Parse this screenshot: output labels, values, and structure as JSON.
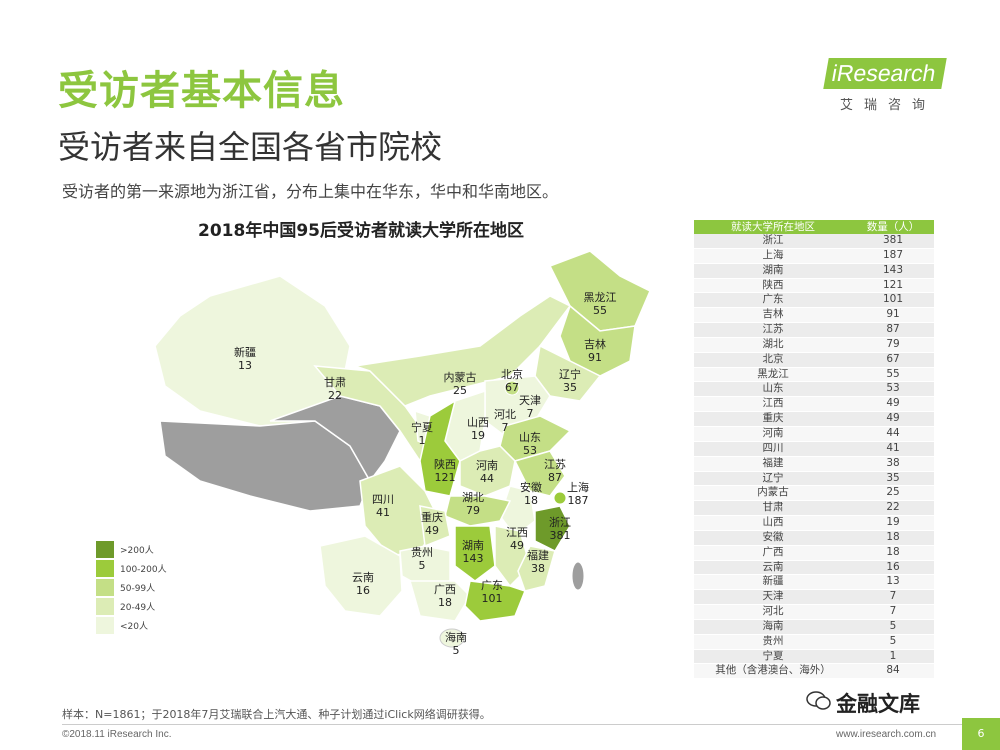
{
  "header": {
    "title": "受访者基本信息",
    "subtitle": "受访者来自全国各省市院校",
    "description": "受访者的第一来源地为浙江省，分布上集中在华东，华中和华南地区。"
  },
  "logo": {
    "brand": "iResearch",
    "cn": "艾瑞咨询"
  },
  "chart_data": {
    "type": "table",
    "title": "2018年中国95后受访者就读大学所在地区",
    "columns": [
      "就读大学所在地区",
      "数量（人）"
    ],
    "rows": [
      [
        "浙江",
        "381"
      ],
      [
        "上海",
        "187"
      ],
      [
        "湖南",
        "143"
      ],
      [
        "陕西",
        "121"
      ],
      [
        "广东",
        "101"
      ],
      [
        "吉林",
        "91"
      ],
      [
        "江苏",
        "87"
      ],
      [
        "湖北",
        "79"
      ],
      [
        "北京",
        "67"
      ],
      [
        "黑龙江",
        "55"
      ],
      [
        "山东",
        "53"
      ],
      [
        "江西",
        "49"
      ],
      [
        "重庆",
        "49"
      ],
      [
        "河南",
        "44"
      ],
      [
        "四川",
        "41"
      ],
      [
        "福建",
        "38"
      ],
      [
        "辽宁",
        "35"
      ],
      [
        "内蒙古",
        "25"
      ],
      [
        "甘肃",
        "22"
      ],
      [
        "山西",
        "19"
      ],
      [
        "安徽",
        "18"
      ],
      [
        "广西",
        "18"
      ],
      [
        "云南",
        "16"
      ],
      [
        "新疆",
        "13"
      ],
      [
        "天津",
        "7"
      ],
      [
        "河北",
        "7"
      ],
      [
        "海南",
        "5"
      ],
      [
        "贵州",
        "5"
      ],
      [
        "宁夏",
        "1"
      ],
      [
        "其他（含港澳台、海外）",
        "84"
      ]
    ],
    "map_labels": [
      {
        "name": "新疆",
        "value": "13"
      },
      {
        "name": "甘肃",
        "value": "22"
      },
      {
        "name": "内蒙古",
        "value": "25"
      },
      {
        "name": "黑龙江",
        "value": "55"
      },
      {
        "name": "吉林",
        "value": "91"
      },
      {
        "name": "辽宁",
        "value": "35"
      },
      {
        "name": "北京",
        "value": "67"
      },
      {
        "name": "天津",
        "value": "7"
      },
      {
        "name": "河北",
        "value": "7"
      },
      {
        "name": "宁夏",
        "value": "1"
      },
      {
        "name": "山西",
        "value": "19"
      },
      {
        "name": "山东",
        "value": "53"
      },
      {
        "name": "陕西",
        "value": "121"
      },
      {
        "name": "河南",
        "value": "44"
      },
      {
        "name": "江苏",
        "value": "87"
      },
      {
        "name": "四川",
        "value": "41"
      },
      {
        "name": "湖北",
        "value": "79"
      },
      {
        "name": "安徽",
        "value": "18"
      },
      {
        "name": "上海",
        "value": "187"
      },
      {
        "name": "重庆",
        "value": "49"
      },
      {
        "name": "浙江",
        "value": "381"
      },
      {
        "name": "湖南",
        "value": "143"
      },
      {
        "name": "江西",
        "value": "49"
      },
      {
        "name": "贵州",
        "value": "5"
      },
      {
        "name": "福建",
        "value": "38"
      },
      {
        "name": "云南",
        "value": "16"
      },
      {
        "name": "广西",
        "value": "18"
      },
      {
        "name": "广东",
        "value": "101"
      },
      {
        "name": "海南",
        "value": "5"
      }
    ],
    "legend": [
      {
        "label": ">200人",
        "color": "#6e9a2a"
      },
      {
        "label": "100-200人",
        "color": "#9ccb3b"
      },
      {
        "label": "50-99人",
        "color": "#c4df86"
      },
      {
        "label": "20-49人",
        "color": "#dcecb5"
      },
      {
        "label": "<20人",
        "color": "#eef6dd"
      }
    ]
  },
  "footer": {
    "note": "样本：N=1861；于2018年7月艾瑞联合上汽大通、种子计划通过iClick网络调研获得。",
    "copyright": "©2018.11 iResearch Inc.",
    "website": "www.iresearch.com.cn",
    "page": "6",
    "watermark": "金融文库"
  }
}
